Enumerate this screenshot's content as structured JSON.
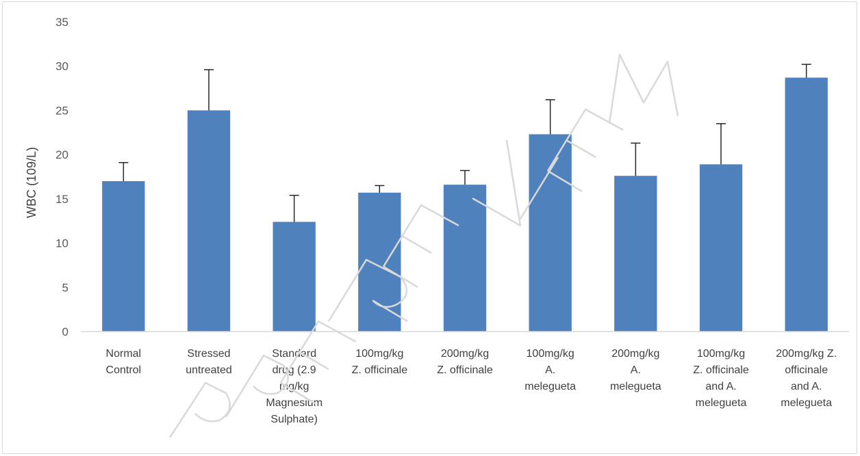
{
  "chart_data": {
    "type": "bar",
    "title": "",
    "xlabel": "",
    "ylabel": "WBC (109/L)",
    "ylim": [
      0,
      35
    ],
    "yticks": [
      0,
      5,
      10,
      15,
      20,
      25,
      30,
      35
    ],
    "grid": false,
    "legend": "none",
    "bar_color": "#4f81bd",
    "error_color": "#262626",
    "categories": [
      [
        "Normal",
        "Control"
      ],
      [
        "Stressed",
        "untreated"
      ],
      [
        "Standard",
        "drug (2.9",
        "mg/kg",
        "Magnesium",
        "Sulphate)"
      ],
      [
        "100mg/kg",
        "Z. officinale"
      ],
      [
        "200mg/kg",
        "Z. officinale"
      ],
      [
        "100mg/kg",
        "A.",
        "melegueta"
      ],
      [
        "200mg/kg",
        "A.",
        "melegueta"
      ],
      [
        "100mg/kg",
        "Z. officinale",
        "and A.",
        "melegueta"
      ],
      [
        "200mg/kg Z.",
        "officinale",
        "and A.",
        "melegueta"
      ]
    ],
    "values": [
      17.0,
      25.0,
      12.4,
      15.7,
      16.6,
      22.3,
      17.6,
      18.9,
      28.7
    ],
    "errors": [
      2.1,
      4.6,
      3.0,
      0.8,
      1.6,
      3.9,
      3.7,
      4.6,
      1.5
    ]
  },
  "watermark": {
    "color": "#d9d9d9"
  }
}
